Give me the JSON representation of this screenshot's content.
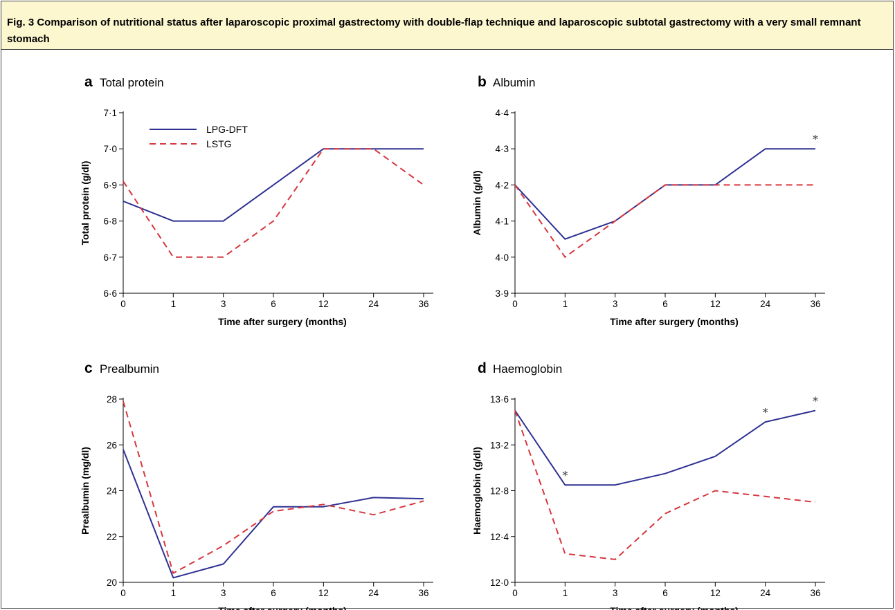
{
  "caption": "Fig. 3 Comparison of nutritional status after laparoscopic proximal gastrectomy with double-flap technique and laparoscopic subtotal gastrectomy with a very small remnant stomach",
  "colors": {
    "lpg_dft": "#2e3192",
    "lstg": "#d6363e",
    "caption_bg": "#fdf7cf"
  },
  "chart_data": [
    {
      "type": "line",
      "panel": "a",
      "title": "Total protein",
      "xlabel": "Time after surgery (months)",
      "ylabel": "Total protein (g/dl)",
      "categories": [
        "0",
        "1",
        "3",
        "6",
        "12",
        "24",
        "36"
      ],
      "ylim": [
        6.6,
        7.1
      ],
      "yticks": [
        "6·6",
        "6·7",
        "6·8",
        "6·9",
        "7·0",
        "7·1"
      ],
      "legend": {
        "placement": "top-left"
      },
      "series": [
        {
          "name": "LPG-DFT",
          "style": "solid",
          "values": [
            6.855,
            6.8,
            6.8,
            6.9,
            7.0,
            7.0,
            7.0
          ]
        },
        {
          "name": "LSTG",
          "style": "dashed",
          "values": [
            6.91,
            6.7,
            6.7,
            6.8,
            7.0,
            7.0,
            6.9
          ]
        }
      ],
      "significance": []
    },
    {
      "type": "line",
      "panel": "b",
      "title": "Albumin",
      "xlabel": "Time after surgery (months)",
      "ylabel": "Albumin (g/dl)",
      "categories": [
        "0",
        "1",
        "3",
        "6",
        "12",
        "24",
        "36"
      ],
      "ylim": [
        3.9,
        4.4
      ],
      "yticks": [
        "3·9",
        "4·0",
        "4·1",
        "4·2",
        "4·3",
        "4·4"
      ],
      "series": [
        {
          "name": "LPG-DFT",
          "style": "solid",
          "values": [
            4.2,
            4.05,
            4.1,
            4.2,
            4.2,
            4.3,
            4.3
          ]
        },
        {
          "name": "LSTG",
          "style": "dashed",
          "values": [
            4.2,
            4.0,
            4.1,
            4.2,
            4.2,
            4.2,
            4.2
          ]
        }
      ],
      "significance": [
        {
          "index": 6,
          "value": 4.3,
          "mark": "*"
        }
      ]
    },
    {
      "type": "line",
      "panel": "c",
      "title": "Prealbumin",
      "xlabel": "Time after surgery (months)",
      "ylabel": "Prealbumin (mg/dl)",
      "categories": [
        "0",
        "1",
        "3",
        "6",
        "12",
        "24",
        "36"
      ],
      "ylim": [
        20,
        28
      ],
      "yticks": [
        "20",
        "22",
        "24",
        "26",
        "28"
      ],
      "series": [
        {
          "name": "LPG-DFT",
          "style": "solid",
          "values": [
            25.8,
            20.2,
            20.8,
            23.3,
            23.3,
            23.7,
            23.65
          ]
        },
        {
          "name": "LSTG",
          "style": "dashed",
          "values": [
            27.9,
            20.4,
            21.6,
            23.1,
            23.4,
            22.95,
            23.55
          ]
        }
      ],
      "significance": []
    },
    {
      "type": "line",
      "panel": "d",
      "title": "Haemoglobin",
      "xlabel": "Time after surgery (months)",
      "ylabel": "Haemoglobin (g/dl)",
      "categories": [
        "0",
        "1",
        "3",
        "6",
        "12",
        "24",
        "36"
      ],
      "ylim": [
        12.0,
        13.6
      ],
      "yticks": [
        "12·0",
        "12·4",
        "12·8",
        "13·2",
        "13·6"
      ],
      "series": [
        {
          "name": "LPG-DFT",
          "style": "solid",
          "values": [
            13.5,
            12.85,
            12.85,
            12.95,
            13.1,
            13.4,
            13.5
          ]
        },
        {
          "name": "LSTG",
          "style": "dashed",
          "values": [
            13.5,
            12.25,
            12.2,
            12.6,
            12.8,
            12.75,
            12.7
          ]
        }
      ],
      "significance": [
        {
          "index": 1,
          "value": 12.85,
          "mark": "*"
        },
        {
          "index": 5,
          "value": 13.4,
          "mark": "*"
        },
        {
          "index": 6,
          "value": 13.5,
          "mark": "*"
        }
      ]
    }
  ]
}
